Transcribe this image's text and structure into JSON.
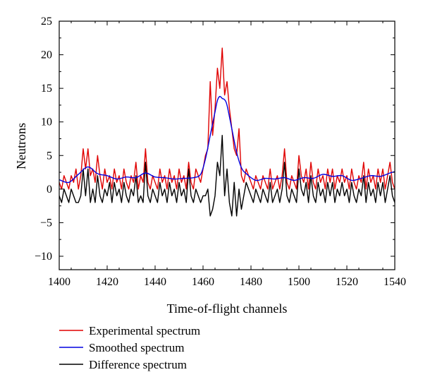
{
  "chart_data": {
    "type": "line",
    "title": "",
    "xlabel": "Time-of-flight channels",
    "ylabel": "Neutrons",
    "xlim": [
      1400,
      1540
    ],
    "ylim": [
      -12,
      25
    ],
    "x_ticks": [
      1400,
      1420,
      1440,
      1460,
      1480,
      1500,
      1520,
      1540
    ],
    "y_ticks": [
      -10,
      -5,
      0,
      5,
      10,
      15,
      20,
      25
    ],
    "grid": false,
    "legend_position": "below-plot",
    "series": [
      {
        "name": "Experimental spectrum",
        "color": "#e00000",
        "x": [
          1400,
          1401,
          1402,
          1403,
          1404,
          1405,
          1406,
          1407,
          1408,
          1409,
          1410,
          1411,
          1412,
          1413,
          1414,
          1415,
          1416,
          1417,
          1418,
          1419,
          1420,
          1421,
          1422,
          1423,
          1424,
          1425,
          1426,
          1427,
          1428,
          1429,
          1430,
          1431,
          1432,
          1433,
          1434,
          1435,
          1436,
          1437,
          1438,
          1439,
          1440,
          1441,
          1442,
          1443,
          1444,
          1445,
          1446,
          1447,
          1448,
          1449,
          1450,
          1451,
          1452,
          1453,
          1454,
          1455,
          1456,
          1457,
          1458,
          1459,
          1460,
          1461,
          1462,
          1463,
          1464,
          1465,
          1466,
          1467,
          1468,
          1469,
          1470,
          1471,
          1472,
          1473,
          1474,
          1475,
          1476,
          1477,
          1478,
          1479,
          1480,
          1481,
          1482,
          1483,
          1484,
          1485,
          1486,
          1487,
          1488,
          1489,
          1490,
          1491,
          1492,
          1493,
          1494,
          1495,
          1496,
          1497,
          1498,
          1499,
          1500,
          1501,
          1502,
          1503,
          1504,
          1505,
          1506,
          1507,
          1508,
          1509,
          1510,
          1511,
          1512,
          1513,
          1514,
          1515,
          1516,
          1517,
          1518,
          1519,
          1520,
          1521,
          1522,
          1523,
          1524,
          1525,
          1526,
          1527,
          1528,
          1529,
          1530,
          1531,
          1532,
          1533,
          1534,
          1535,
          1536,
          1537,
          1538,
          1539,
          1540
        ],
        "y": [
          1,
          0,
          2,
          1,
          0,
          2,
          1,
          3,
          0,
          2,
          6,
          3,
          6,
          2,
          3,
          1,
          5,
          2,
          0,
          3,
          1,
          2,
          0,
          3,
          1,
          2,
          0,
          3,
          1,
          0,
          2,
          1,
          4,
          0,
          2,
          1,
          6,
          1,
          0,
          2,
          1,
          0,
          3,
          1,
          2,
          0,
          3,
          1,
          2,
          0,
          3,
          1,
          2,
          0,
          4,
          1,
          0,
          3,
          2,
          1,
          3,
          5,
          6,
          16,
          8,
          12,
          18,
          15,
          21,
          14,
          16,
          12,
          9,
          6,
          5,
          9,
          2,
          1,
          3,
          2,
          1,
          0,
          2,
          1,
          0,
          2,
          1,
          0,
          3,
          0,
          1,
          2,
          0,
          2,
          6,
          1,
          0,
          2,
          1,
          0,
          5,
          2,
          1,
          3,
          0,
          4,
          1,
          0,
          3,
          1,
          2,
          0,
          3,
          1,
          3,
          0,
          2,
          1,
          3,
          1,
          2,
          0,
          3,
          1,
          0,
          2,
          1,
          4,
          0,
          3,
          1,
          2,
          0,
          3,
          1,
          3,
          0,
          2,
          4,
          1,
          0
        ],
        "smooth": false
      },
      {
        "name": "Smoothed spectrum",
        "color": "#0000e0",
        "x": [
          1400,
          1404,
          1408,
          1412,
          1416,
          1420,
          1424,
          1428,
          1432,
          1436,
          1440,
          1444,
          1448,
          1452,
          1456,
          1459,
          1461,
          1463,
          1465,
          1466,
          1467,
          1468,
          1469,
          1470,
          1472,
          1474,
          1476,
          1478,
          1482,
          1486,
          1490,
          1494,
          1498,
          1502,
          1506,
          1510,
          1514,
          1518,
          1522,
          1526,
          1530,
          1534,
          1538,
          1540
        ],
        "y": [
          1.4,
          1.0,
          2.2,
          3.3,
          2.3,
          2.0,
          1.5,
          1.8,
          1.7,
          2.4,
          1.8,
          1.7,
          1.5,
          1.6,
          1.7,
          2.2,
          4.5,
          8.0,
          11.5,
          13.2,
          13.8,
          13.5,
          13.3,
          12.5,
          9.0,
          5.5,
          3.2,
          2.3,
          1.3,
          1.6,
          1.5,
          1.7,
          1.3,
          1.7,
          1.6,
          2.2,
          1.9,
          2.0,
          1.3,
          1.6,
          2.0,
          1.9,
          2.4,
          2.6
        ],
        "smooth": true
      },
      {
        "name": "Difference spectrum",
        "color": "#000000",
        "x": [
          1400,
          1401,
          1402,
          1403,
          1404,
          1405,
          1406,
          1407,
          1408,
          1409,
          1410,
          1411,
          1412,
          1413,
          1414,
          1415,
          1416,
          1417,
          1418,
          1419,
          1420,
          1421,
          1422,
          1423,
          1424,
          1425,
          1426,
          1427,
          1428,
          1429,
          1430,
          1431,
          1432,
          1433,
          1434,
          1435,
          1436,
          1437,
          1438,
          1439,
          1440,
          1441,
          1442,
          1443,
          1444,
          1445,
          1446,
          1447,
          1448,
          1449,
          1450,
          1451,
          1452,
          1453,
          1454,
          1455,
          1456,
          1457,
          1458,
          1459,
          1460,
          1461,
          1462,
          1463,
          1464,
          1465,
          1466,
          1467,
          1468,
          1469,
          1470,
          1471,
          1472,
          1473,
          1474,
          1475,
          1476,
          1477,
          1478,
          1479,
          1480,
          1481,
          1482,
          1483,
          1484,
          1485,
          1486,
          1487,
          1488,
          1489,
          1490,
          1491,
          1492,
          1493,
          1494,
          1495,
          1496,
          1497,
          1498,
          1499,
          1500,
          1501,
          1502,
          1503,
          1504,
          1505,
          1506,
          1507,
          1508,
          1509,
          1510,
          1511,
          1512,
          1513,
          1514,
          1515,
          1516,
          1517,
          1518,
          1519,
          1520,
          1521,
          1522,
          1523,
          1524,
          1525,
          1526,
          1527,
          1528,
          1529,
          1530,
          1531,
          1532,
          1533,
          1534,
          1535,
          1536,
          1537,
          1538,
          1539,
          1540
        ],
        "y": [
          -1,
          -2,
          0,
          -1,
          -2,
          0,
          -1,
          -2,
          -2,
          -1,
          3,
          -1,
          3,
          -2,
          0,
          -2,
          2,
          -1,
          -2,
          0,
          -1,
          1,
          -2,
          1,
          -1,
          0,
          -2,
          1,
          -1,
          -2,
          0,
          -1,
          2,
          -2,
          -1,
          -2,
          4,
          -1,
          -2,
          0,
          -1,
          -2,
          1,
          -1,
          0,
          -2,
          1,
          -1,
          0,
          -2,
          1,
          -1,
          0,
          -2,
          3,
          -1,
          -2,
          0,
          -1,
          -2,
          -1,
          -1,
          0,
          -4,
          -3,
          -1,
          4,
          2,
          8,
          -1,
          3,
          -2,
          -4,
          1,
          -4,
          0,
          -3,
          -1,
          1,
          0,
          -1,
          -2,
          0,
          -1,
          -2,
          0,
          -1,
          -2,
          1,
          -2,
          -1,
          0,
          -2,
          0,
          4,
          -1,
          -2,
          0,
          -1,
          -2,
          3,
          0,
          -1,
          1,
          -2,
          2,
          -1,
          -2,
          1,
          -1,
          0,
          -2,
          1,
          -1,
          1,
          -2,
          0,
          -1,
          1,
          -1,
          0,
          -2,
          1,
          -1,
          -2,
          0,
          -1,
          2,
          -2,
          1,
          -1,
          0,
          -2,
          1,
          -1,
          1,
          -2,
          0,
          2,
          -1,
          -2
        ]
      }
    ]
  }
}
